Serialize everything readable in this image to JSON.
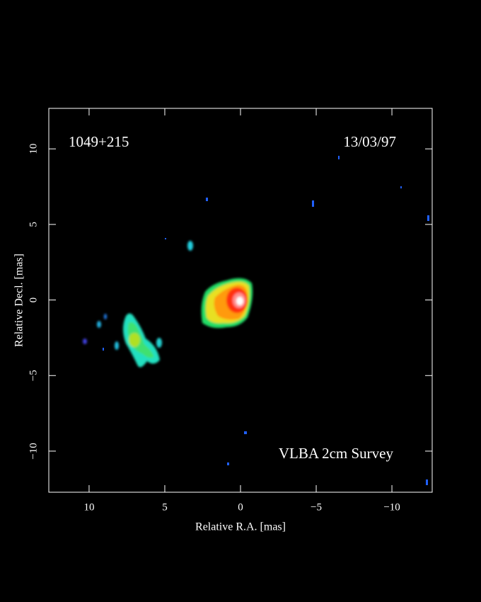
{
  "chart_data": {
    "type": "image",
    "xlabel": "Relative R.A. [mas]",
    "ylabel": "Relative Decl. [mas]",
    "annotations": [
      "1049+215",
      "13/03/97",
      "VLBA 2cm Survey"
    ],
    "xlim": [
      12.66,
      -12.66
    ],
    "ylim": [
      -12.72,
      12.68
    ],
    "xticks": [
      10,
      5,
      0,
      {
        "value": -5,
        "label": "−5"
      },
      {
        "value": -10,
        "label": "−10"
      }
    ],
    "yticks": [
      {
        "value": -10,
        "label": "−10"
      },
      {
        "value": -5,
        "label": "−5"
      },
      0,
      5,
      10
    ]
  }
}
